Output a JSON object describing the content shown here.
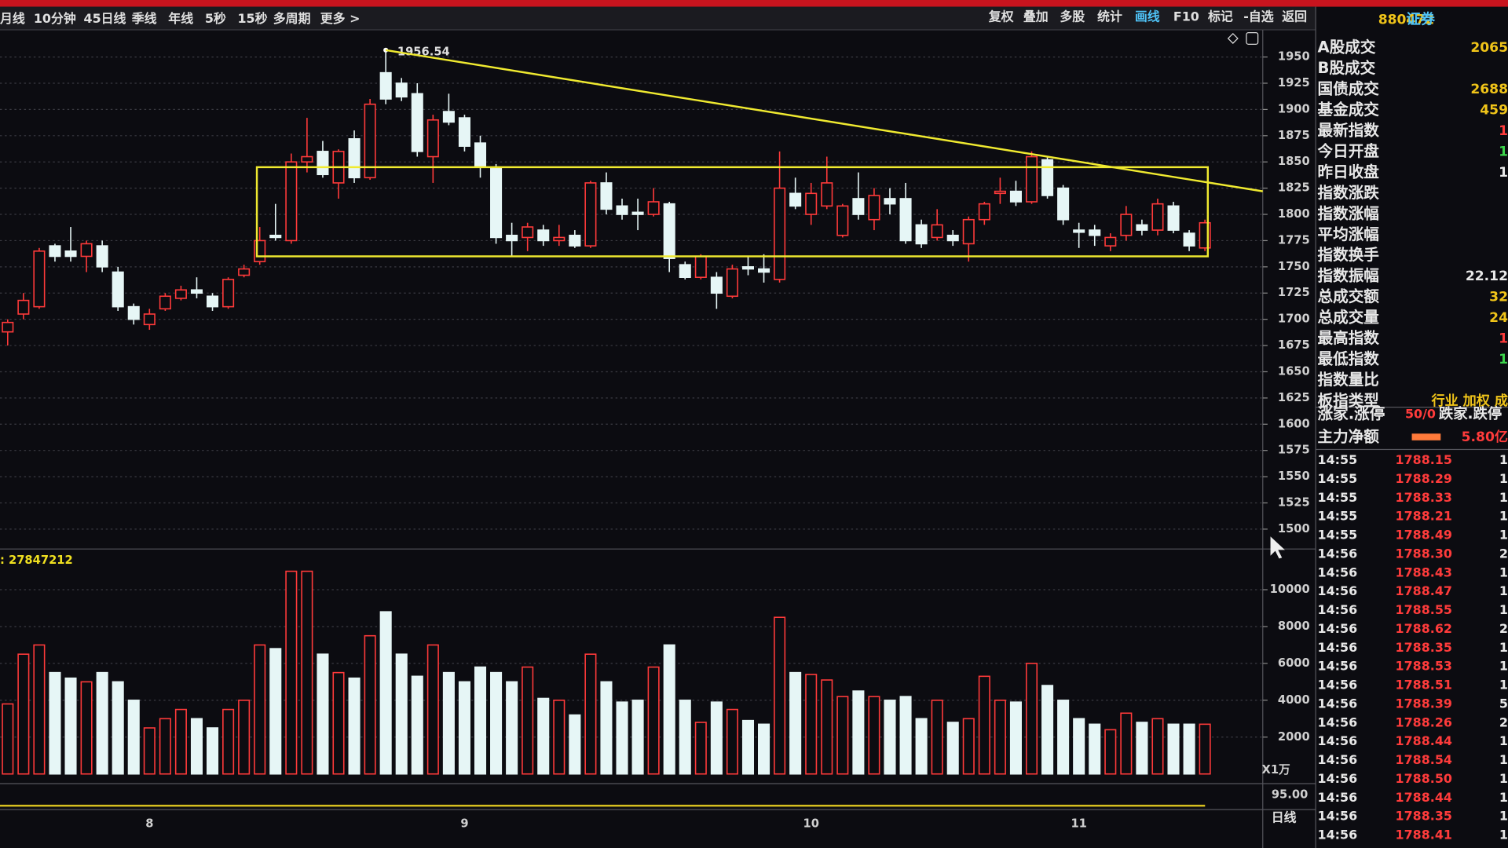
{
  "toolbar": {
    "left": [
      "月线",
      "10分钟",
      "45日线",
      "季线",
      "年线",
      "5秒",
      "15秒",
      "多周期",
      "更多 >"
    ],
    "right": [
      "复权",
      "叠加",
      "多股",
      "统计",
      "画线",
      "F10",
      "标记",
      "-自选",
      "返回"
    ]
  },
  "chart_data": {
    "type": "candlestick",
    "categories": [
      null,
      null,
      null,
      null,
      null,
      null,
      null,
      null,
      null,
      "8",
      null,
      null,
      null,
      null,
      null,
      null,
      null,
      null,
      null,
      null,
      null,
      null,
      null,
      null,
      null,
      null,
      null,
      null,
      null,
      "9",
      null,
      null,
      null,
      null,
      null,
      null,
      null,
      null,
      null,
      null,
      null,
      null,
      null,
      null,
      null,
      null,
      null,
      null,
      null,
      null,
      null,
      "10",
      null,
      null,
      null,
      null,
      null,
      null,
      null,
      null,
      null,
      null,
      null,
      null,
      null,
      null,
      null,
      null,
      "11",
      null,
      null,
      null,
      null,
      null,
      null,
      null,
      null
    ],
    "open": [
      1688,
      1705,
      1712,
      1770,
      1765,
      1760,
      1770,
      1745,
      1712,
      1695,
      1710,
      1720,
      1728,
      1722,
      1712,
      1742,
      1755,
      1780,
      1775,
      1850,
      1860,
      1830,
      1872,
      1835,
      1935,
      1925,
      1915,
      1855,
      1898,
      1892,
      1868,
      1845,
      1780,
      1778,
      1785,
      1775,
      1780,
      1770,
      1830,
      1808,
      1802,
      1800,
      1810,
      1752,
      1740,
      1740,
      1722,
      1750,
      1748,
      1738,
      1820,
      1800,
      1808,
      1780,
      1815,
      1795,
      1815,
      1815,
      1790,
      1778,
      1780,
      1772,
      1795,
      1820,
      1822,
      1812,
      1852,
      1825,
      1785,
      1785,
      1770,
      1780,
      1790,
      1785,
      1808,
      1782,
      1768
    ],
    "high": [
      1700,
      1725,
      1768,
      1772,
      1788,
      1775,
      1775,
      1750,
      1715,
      1710,
      1725,
      1732,
      1740,
      1725,
      1740,
      1752,
      1788,
      1810,
      1858,
      1892,
      1870,
      1862,
      1880,
      1910,
      1956.54,
      1930,
      1925,
      1895,
      1915,
      1895,
      1875,
      1848,
      1792,
      1792,
      1790,
      1790,
      1785,
      1832,
      1840,
      1815,
      1815,
      1825,
      1812,
      1755,
      1762,
      1745,
      1752,
      1760,
      1762,
      1860,
      1835,
      1830,
      1855,
      1810,
      1840,
      1825,
      1825,
      1830,
      1795,
      1805,
      1785,
      1798,
      1812,
      1835,
      1832,
      1860,
      1855,
      1828,
      1792,
      1790,
      1782,
      1808,
      1795,
      1815,
      1812,
      1785,
      1795
    ],
    "low": [
      1675,
      1700,
      1710,
      1755,
      1755,
      1745,
      1745,
      1708,
      1695,
      1690,
      1708,
      1718,
      1720,
      1708,
      1710,
      1740,
      1752,
      1775,
      1772,
      1840,
      1835,
      1815,
      1830,
      1833,
      1905,
      1908,
      1855,
      1830,
      1885,
      1860,
      1835,
      1772,
      1760,
      1765,
      1770,
      1770,
      1768,
      1768,
      1800,
      1795,
      1785,
      1798,
      1745,
      1738,
      1738,
      1710,
      1720,
      1742,
      1735,
      1735,
      1805,
      1790,
      1805,
      1778,
      1795,
      1785,
      1800,
      1772,
      1768,
      1775,
      1770,
      1755,
      1790,
      1810,
      1808,
      1810,
      1815,
      1790,
      1768,
      1770,
      1765,
      1775,
      1780,
      1780,
      1782,
      1765,
      1765
    ],
    "close": [
      1697,
      1718,
      1765,
      1760,
      1760,
      1772,
      1750,
      1712,
      1700,
      1705,
      1722,
      1728,
      1725,
      1712,
      1738,
      1748,
      1775,
      1778,
      1850,
      1855,
      1838,
      1860,
      1835,
      1905,
      1910,
      1912,
      1860,
      1890,
      1888,
      1865,
      1845,
      1778,
      1775,
      1788,
      1775,
      1778,
      1770,
      1830,
      1805,
      1800,
      1800,
      1812,
      1758,
      1740,
      1760,
      1725,
      1748,
      1748,
      1745,
      1825,
      1808,
      1820,
      1830,
      1808,
      1800,
      1818,
      1810,
      1775,
      1772,
      1790,
      1775,
      1795,
      1810,
      1822,
      1812,
      1855,
      1818,
      1795,
      1783,
      1780,
      1778,
      1800,
      1785,
      1810,
      1785,
      1770,
      1792
    ],
    "high_label": "1956.54",
    "ylim": [
      1482,
      1975
    ],
    "yticks": [
      1950,
      1925,
      1900,
      1875,
      1850,
      1825,
      1800,
      1775,
      1750,
      1725,
      1700,
      1675,
      1650,
      1625,
      1600,
      1575,
      1550,
      1525,
      1500
    ],
    "grid": true,
    "box": {
      "high": 1845,
      "low": 1760,
      "start": 16,
      "end": 76
    },
    "trendline": {
      "start": 24,
      "start_value": 1956.54,
      "end_value": 1822
    },
    "volume": {
      "label": ": 27847212",
      "unit": "X1万",
      "values": [
        3800,
        6500,
        7000,
        5500,
        5200,
        5000,
        5500,
        5000,
        4000,
        2500,
        3000,
        3500,
        3000,
        2500,
        3500,
        4000,
        7000,
        6800,
        11000,
        11000,
        6500,
        5500,
        5200,
        7500,
        8800,
        6500,
        5300,
        7000,
        5500,
        5000,
        5800,
        5500,
        5000,
        5800,
        4100,
        4000,
        3200,
        6500,
        5000,
        3900,
        4000,
        5800,
        7000,
        4000,
        2800,
        3900,
        3500,
        2900,
        2700,
        8500,
        5500,
        5400,
        5100,
        4200,
        4500,
        4200,
        4000,
        4200,
        3000,
        4000,
        2800,
        3000,
        5300,
        4000,
        3900,
        6000,
        4800,
        4000,
        3000,
        2700,
        2400,
        3300,
        2800,
        3000,
        2700,
        2700,
        2700
      ],
      "ylim": [
        0,
        12000
      ],
      "yticks": [
        2000,
        4000,
        6000,
        8000,
        10000
      ]
    },
    "sub_label": "95.00",
    "period": "日线"
  },
  "panel": {
    "code": "880472",
    "name": "证券",
    "quote": [
      {
        "label": "A股成交",
        "value": "2065",
        "color": "#f0c419"
      },
      {
        "label": "B股成交"
      },
      {
        "label": "国债成交",
        "value": "2688",
        "color": "#f0c419"
      },
      {
        "label": "基金成交",
        "value": "459",
        "color": "#f0c419"
      },
      {
        "label": "最新指数",
        "value": "1",
        "color": "#ff3b3b"
      },
      {
        "label": "今日开盘",
        "value": "1",
        "color": "#3bd44a"
      },
      {
        "label": "昨日收盘",
        "value": "1",
        "color": "#e8e8e8"
      },
      {
        "label": "指数涨跌"
      },
      {
        "label": "指数涨幅"
      },
      {
        "label": "平均涨幅"
      },
      {
        "label": "指数换手"
      },
      {
        "label": "指数振幅",
        "value": "22.12",
        "color": "#e8e8e8"
      },
      {
        "label": "总成交额",
        "value": "32",
        "color": "#f0c419"
      },
      {
        "label": "总成交量",
        "value": "24",
        "color": "#f0c419"
      },
      {
        "label": "最高指数",
        "value": "1",
        "color": "#ff3b3b"
      },
      {
        "label": "最低指数",
        "value": "1",
        "color": "#3bd44a"
      },
      {
        "label": "指数量比"
      },
      {
        "label": "板指类型",
        "value": "行业 加权 成",
        "color": "#f0c419"
      }
    ],
    "breadth": {
      "label": "涨家.涨停",
      "value": "50/0",
      "label2": "跌家.跌停"
    },
    "flow": {
      "label": "主力净额",
      "value": "5.80亿"
    },
    "ticks": [
      [
        "14:55",
        "1788.15",
        "1"
      ],
      [
        "14:55",
        "1788.29",
        "1"
      ],
      [
        "14:55",
        "1788.33",
        "1"
      ],
      [
        "14:55",
        "1788.21",
        "1"
      ],
      [
        "14:55",
        "1788.49",
        "1"
      ],
      [
        "14:56",
        "1788.30",
        "2"
      ],
      [
        "14:56",
        "1788.43",
        "1"
      ],
      [
        "14:56",
        "1788.47",
        "1"
      ],
      [
        "14:56",
        "1788.55",
        "1"
      ],
      [
        "14:56",
        "1788.62",
        "2"
      ],
      [
        "14:56",
        "1788.35",
        "1"
      ],
      [
        "14:56",
        "1788.53",
        "1"
      ],
      [
        "14:56",
        "1788.51",
        "1"
      ],
      [
        "14:56",
        "1788.39",
        "5"
      ],
      [
        "14:56",
        "1788.26",
        "2"
      ],
      [
        "14:56",
        "1788.44",
        "1"
      ],
      [
        "14:56",
        "1788.54",
        "1"
      ],
      [
        "14:56",
        "1788.50",
        "1"
      ],
      [
        "14:56",
        "1788.44",
        "1"
      ],
      [
        "14:56",
        "1788.35",
        "1"
      ],
      [
        "14:56",
        "1788.41",
        "1"
      ]
    ]
  }
}
